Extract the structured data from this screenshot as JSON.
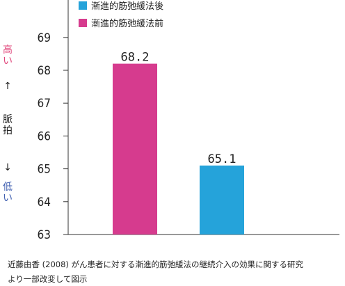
{
  "chart_data": {
    "type": "bar",
    "categories": [
      "漸進的筋弛緩法前",
      "漸進的筋弛緩法後"
    ],
    "values": [
      68.2,
      65.1
    ],
    "data_labels": [
      "68.2",
      "65.1"
    ],
    "bar_colors": [
      "#d63b8e",
      "#25a3da"
    ],
    "ylim": [
      63,
      69.5
    ],
    "yticks": [
      63,
      64,
      65,
      66,
      67,
      68,
      69
    ],
    "ylabel": {
      "high": "高い",
      "up_arrow": "↑",
      "mid": "脈拍",
      "down_arrow": "↓",
      "low": "低い",
      "high_color": "#e0457a",
      "low_color": "#3f5fb0"
    },
    "legend": {
      "placement": "top",
      "items": [
        {
          "label": "漸進的筋弛緩法後",
          "color": "#25a3da"
        },
        {
          "label": "漸進的筋弛緩法前",
          "color": "#d63b8e"
        }
      ]
    },
    "grid": false
  },
  "caption": {
    "line1": "近藤由香 (2008) がん患者に対する漸進的筋弛緩法の継続介入の効果に関する研究",
    "line2": "より一部改変して図示"
  }
}
